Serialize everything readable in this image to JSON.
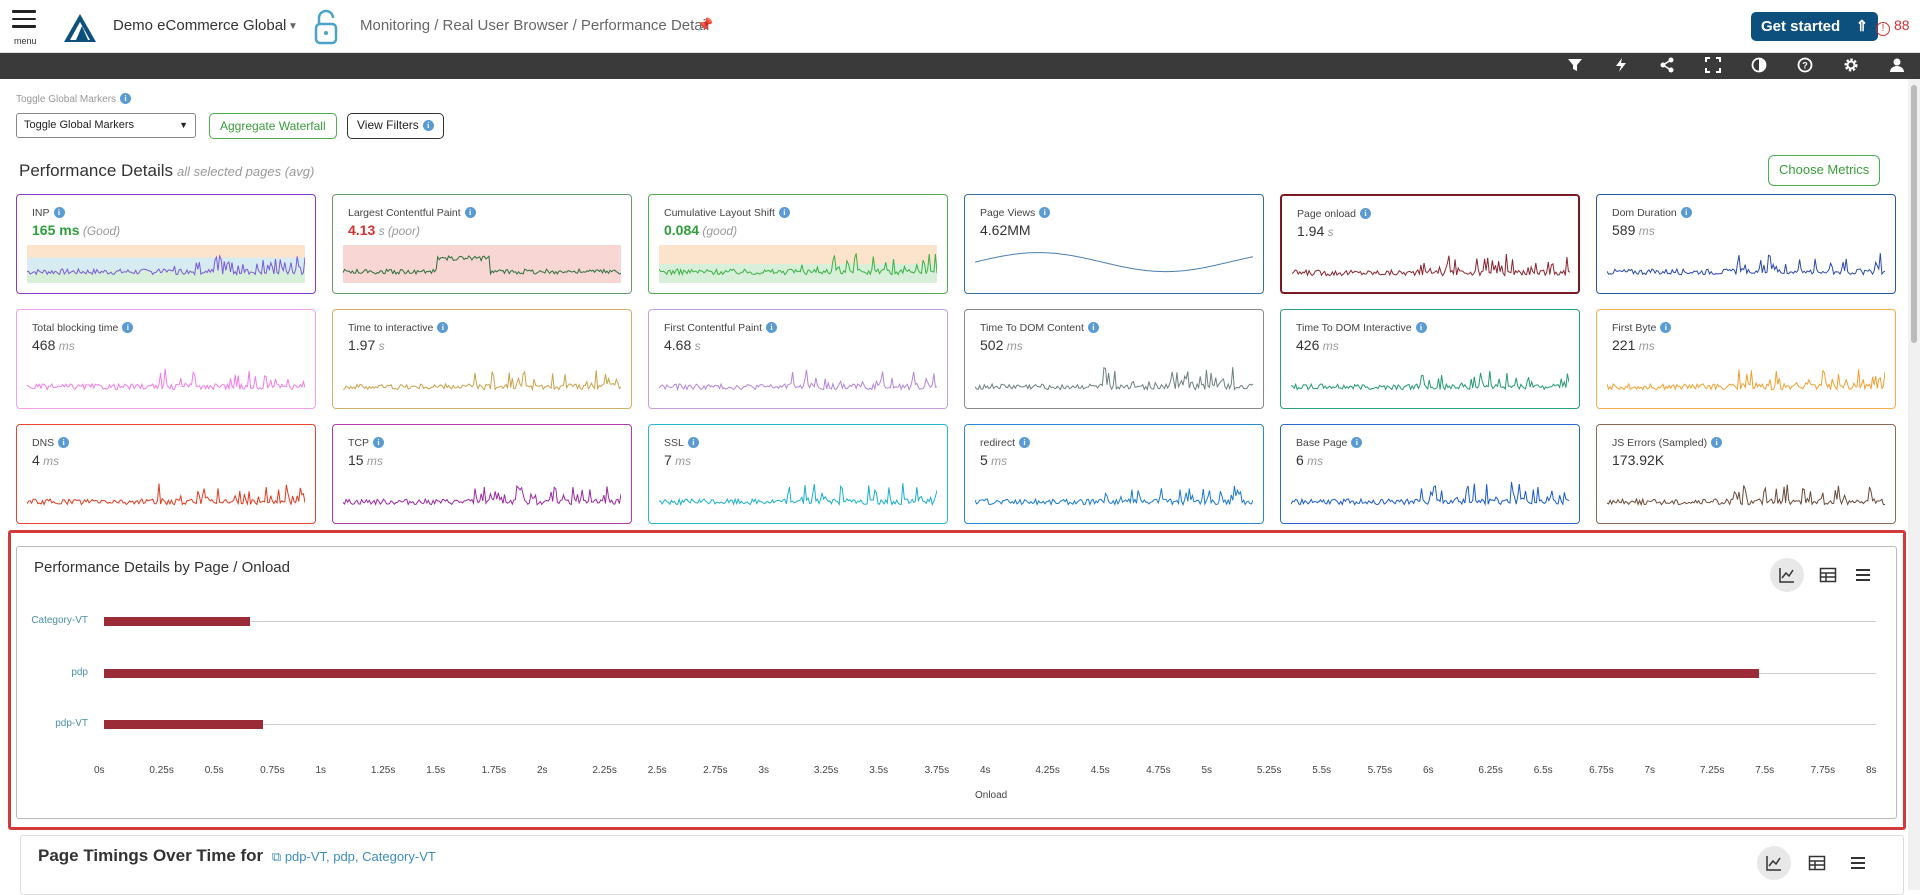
{
  "header": {
    "menu_label": "menu",
    "org_name": "Demo eCommerce Global",
    "breadcrumb": "Monitoring / Real User Browser / Performance Detail",
    "get_started": "Get started",
    "alert_count": "88"
  },
  "toolbar": {
    "icons": [
      "filter-icon",
      "lightning-icon",
      "share-icon",
      "fullscreen-icon",
      "contrast-icon",
      "help-icon",
      "gear-icon",
      "user-icon"
    ]
  },
  "controls": {
    "global_markers_label": "Toggle Global Markers",
    "global_markers_value": "Toggle Global Markers",
    "aggregate_waterfall": "Aggregate Waterfall",
    "view_filters": "View Filters"
  },
  "performance": {
    "title": "Performance Details",
    "subtitle": "all selected pages (avg)",
    "choose_metrics": "Choose Metrics",
    "cards": [
      {
        "name": "INP",
        "value": "165 ms",
        "unit": "",
        "qual": "(Good)",
        "value_color": "#2e9e3a",
        "border": "#8a3ccf",
        "line": "#7a5ad8",
        "bands": [
          "#fce3cc",
          "#d7ecf2",
          "#d8f0da"
        ]
      },
      {
        "name": "Largest Contentful Paint",
        "value": "4.13",
        "unit": " s",
        "qual": "(poor)",
        "value_color": "#d32f2f",
        "border": "#6a9a6a",
        "line": "#2f6f3f",
        "bands": [
          "#f7d6d3",
          "#f7d6d3"
        ]
      },
      {
        "name": "Cumulative Layout Shift",
        "value": "0.084",
        "unit": "",
        "qual": "(good)",
        "value_color": "#2e9e3a",
        "border": "#4caf50",
        "line": "#3cb043",
        "bands": [
          "#fce3cc",
          "#d8f0da"
        ]
      },
      {
        "name": "Page Views",
        "value": "4.62MM",
        "unit": "",
        "qual": "",
        "value_color": "#333333",
        "border": "#3a6fa5",
        "line": "#4a7fb0",
        "bands": []
      },
      {
        "name": "Page onload",
        "value": "1.94",
        "unit": " s",
        "qual": "",
        "value_color": "#333333",
        "border": "#7b1a22",
        "line": "#8b2530",
        "bands": []
      },
      {
        "name": "Dom Duration",
        "value": "589",
        "unit": " ms",
        "qual": "",
        "value_color": "#333333",
        "border": "#2a56b0",
        "line": "#2a4aa8",
        "bands": []
      },
      {
        "name": "Total blocking time",
        "value": "468",
        "unit": " ms",
        "qual": "",
        "value_color": "#333333",
        "border": "#f2a0ee",
        "line": "#f07ce8",
        "bands": []
      },
      {
        "name": "Time to interactive",
        "value": "1.97",
        "unit": " s",
        "qual": "",
        "value_color": "#333333",
        "border": "#d4b06a",
        "line": "#c9a24a",
        "bands": []
      },
      {
        "name": "First Contentful Paint",
        "value": "4.68",
        "unit": " s",
        "qual": "",
        "value_color": "#333333",
        "border": "#c8a0e0",
        "line": "#b585d8",
        "bands": []
      },
      {
        "name": "Time To DOM Content",
        "value": "502",
        "unit": " ms",
        "qual": "",
        "value_color": "#333333",
        "border": "#8a8a8a",
        "line": "#6f7f7f",
        "bands": []
      },
      {
        "name": "Time To DOM Interactive",
        "value": "426",
        "unit": " ms",
        "qual": "",
        "value_color": "#333333",
        "border": "#2aa07a",
        "line": "#239a72",
        "bands": []
      },
      {
        "name": "First Byte",
        "value": "221",
        "unit": " ms",
        "qual": "",
        "value_color": "#333333",
        "border": "#f5b04a",
        "line": "#f0a030",
        "bands": []
      },
      {
        "name": "DNS",
        "value": "4",
        "unit": " ms",
        "qual": "",
        "value_color": "#333333",
        "border": "#e8452c",
        "line": "#e03a1e",
        "bands": []
      },
      {
        "name": "TCP",
        "value": "15",
        "unit": " ms",
        "qual": "",
        "value_color": "#333333",
        "border": "#b03ab0",
        "line": "#9a2aa0",
        "bands": []
      },
      {
        "name": "SSL",
        "value": "7",
        "unit": " ms",
        "qual": "",
        "value_color": "#333333",
        "border": "#2ab8d0",
        "line": "#1ab0c8",
        "bands": []
      },
      {
        "name": "redirect",
        "value": "5",
        "unit": " ms",
        "qual": "",
        "value_color": "#333333",
        "border": "#2a88d8",
        "line": "#1a7ad0",
        "bands": []
      },
      {
        "name": "Base Page",
        "value": "6",
        "unit": " ms",
        "qual": "",
        "value_color": "#333333",
        "border": "#2a6ad8",
        "line": "#1a5ad0",
        "bands": []
      },
      {
        "name": "JS Errors (Sampled)",
        "value": "173.92K",
        "unit": "",
        "qual": "",
        "value_color": "#333333",
        "border": "#8a6a5a",
        "line": "#6a4a3a",
        "bands": []
      }
    ]
  },
  "chart_panel": {
    "title": "Performance Details by Page / Onload",
    "controls": [
      "line-chart-icon",
      "table-icon",
      "list-menu-icon"
    ]
  },
  "chart_data": {
    "type": "bar",
    "orientation": "horizontal",
    "categories": [
      "Category-VT",
      "pdp",
      "pdp-VT"
    ],
    "values": [
      0.66,
      7.47,
      0.72
    ],
    "xlabel": "Onload",
    "xlim": [
      0,
      8
    ],
    "xticks": [
      "0s",
      "0.25s",
      "0.5s",
      "0.75s",
      "1s",
      "1.25s",
      "1.5s",
      "1.75s",
      "2s",
      "2.25s",
      "2.5s",
      "2.75s",
      "3s",
      "3.25s",
      "3.5s",
      "3.75s",
      "4s",
      "4.25s",
      "4.5s",
      "4.75s",
      "5s",
      "5.25s",
      "5.5s",
      "5.75s",
      "6s",
      "6.25s",
      "6.5s",
      "6.75s",
      "7s",
      "7.25s",
      "7.5s",
      "7.75s",
      "8s"
    ],
    "color": "#9b2b36"
  },
  "page_timings": {
    "title": "Page Timings Over Time for",
    "pages": "pdp-VT, pdp, Category-VT"
  }
}
